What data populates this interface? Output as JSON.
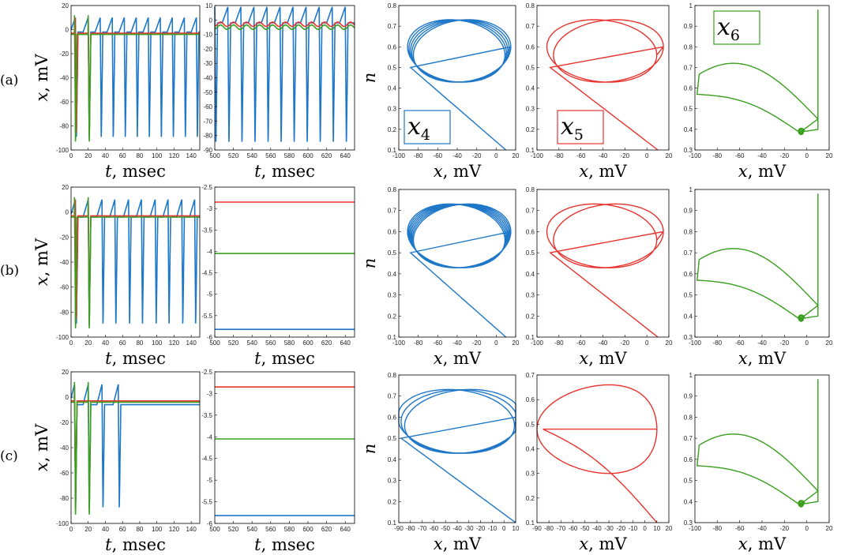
{
  "colors": {
    "x4": "#1f77c8",
    "x5": "#e8332e",
    "x6": "#3a9e1e"
  },
  "row_labels": [
    "(a)",
    "(b)",
    "(c)"
  ],
  "axis_text": {
    "x_time_var": "t",
    "x_time_unit": ", msec",
    "y_volt_var": "x",
    "y_volt_unit": ", mV",
    "x_volt_var": "x",
    "x_volt_unit": ", mV",
    "y_n_var": "n"
  },
  "trace_labels": {
    "x4": {
      "base": "x",
      "sub": "4"
    },
    "x5": {
      "base": "x",
      "sub": "5"
    },
    "x6": {
      "base": "x",
      "sub": "6"
    }
  },
  "chart_data": [
    {
      "id": "a-time-early",
      "type": "line",
      "xlabel": "t, msec",
      "ylabel": "x, mV",
      "xlim": [
        0,
        150
      ],
      "ylim": [
        -100,
        20
      ],
      "xticks": [
        0,
        20,
        40,
        60,
        80,
        100,
        120,
        140
      ],
      "yticks": [
        20,
        0,
        -20,
        -40,
        -60,
        -80,
        -100
      ],
      "series": [
        {
          "color": "x4",
          "kind": "spike_train",
          "spikes": [
            5,
            20,
            34,
            48,
            62,
            76,
            90,
            104,
            118,
            132,
            146
          ],
          "rest": -2,
          "peak": 10,
          "trough": -92
        },
        {
          "color": "x5",
          "kind": "damped",
          "spikes": [
            5,
            20
          ],
          "level": -3,
          "peak": 10,
          "trough": -88
        },
        {
          "color": "x6",
          "kind": "damped",
          "spikes": [
            4,
            20
          ],
          "level": -4,
          "peak": 12,
          "trough": -96
        }
      ]
    },
    {
      "id": "a-time-late",
      "type": "line",
      "xlabel": "t, msec",
      "ylabel": "",
      "xlim": [
        500,
        650
      ],
      "ylim": [
        -90,
        10
      ],
      "xticks": [
        500,
        520,
        540,
        560,
        580,
        600,
        620,
        640
      ],
      "yticks": [
        10,
        0,
        -10,
        -20,
        -30,
        -40,
        -50,
        -60,
        -70,
        -80,
        -90
      ],
      "series": [
        {
          "color": "x4",
          "kind": "spike_train",
          "spikes": [
            500,
            514,
            528,
            542,
            556,
            570,
            584,
            598,
            612,
            626,
            640
          ],
          "rest": -2,
          "peak": 9,
          "trough": -87
        },
        {
          "color": "x5",
          "kind": "flat_osc",
          "level": -3
        },
        {
          "color": "x6",
          "kind": "flat_osc",
          "level": -5
        }
      ]
    },
    {
      "id": "a-phase-x4",
      "type": "line",
      "xlabel": "x, mV",
      "ylabel": "n",
      "xlim": [
        -100,
        20
      ],
      "ylim": [
        0.1,
        0.8
      ],
      "xticks": [
        -100,
        -80,
        -60,
        -40,
        -20,
        0,
        20
      ],
      "yticks": [
        0.8,
        0.7,
        0.6,
        0.5,
        0.4,
        0.3,
        0.2,
        0.1
      ],
      "series": [
        {
          "color": "x4",
          "kind": "orbit",
          "variant": "a4"
        }
      ]
    },
    {
      "id": "a-phase-x5",
      "type": "line",
      "xlabel": "x, mV",
      "ylabel": "",
      "xlim": [
        -100,
        20
      ],
      "ylim": [
        0.1,
        0.8
      ],
      "xticks": [
        -100,
        -80,
        -60,
        -40,
        -20,
        0,
        20
      ],
      "yticks": [
        0.8,
        0.7,
        0.6,
        0.5,
        0.4,
        0.3,
        0.2,
        0.1
      ],
      "series": [
        {
          "color": "x5",
          "kind": "orbit",
          "variant": "a5"
        }
      ]
    },
    {
      "id": "a-phase-x6",
      "type": "line",
      "xlabel": "x, mV",
      "ylabel": "",
      "xlim": [
        -100,
        20
      ],
      "ylim": [
        0.3,
        1.0
      ],
      "xticks": [
        -100,
        -80,
        -60,
        -40,
        -20,
        0,
        20
      ],
      "yticks": [
        1,
        0.9,
        0.8,
        0.7,
        0.6,
        0.5,
        0.4,
        0.3
      ],
      "series": [
        {
          "color": "x6",
          "kind": "orbit",
          "variant": "a6"
        }
      ]
    },
    {
      "id": "b-time-early",
      "type": "line",
      "xlabel": "t, msec",
      "ylabel": "x, mV",
      "xlim": [
        0,
        150
      ],
      "ylim": [
        -100,
        20
      ],
      "xticks": [
        0,
        20,
        40,
        60,
        80,
        100,
        120,
        140
      ],
      "yticks": [
        20,
        0,
        -20,
        -40,
        -60,
        -80,
        -100
      ],
      "series": [
        {
          "color": "x4",
          "kind": "spike_train",
          "spikes": [
            5,
            20,
            36,
            51,
            67,
            82,
            98,
            113,
            129,
            144
          ],
          "rest": -4,
          "peak": 10,
          "trough": -92
        },
        {
          "color": "x5",
          "kind": "damped",
          "spikes": [
            5,
            20
          ],
          "level": -3,
          "peak": 10,
          "trough": -88
        },
        {
          "color": "x6",
          "kind": "damped",
          "spikes": [
            4,
            20
          ],
          "level": -4,
          "peak": 12,
          "trough": -96
        }
      ]
    },
    {
      "id": "b-time-late",
      "type": "line",
      "xlabel": "t, msec",
      "ylabel": "",
      "xlim": [
        500,
        650
      ],
      "ylim": [
        -6,
        -2.5
      ],
      "xticks": [
        500,
        520,
        540,
        560,
        580,
        600,
        620,
        640
      ],
      "yticks": [
        -2.5,
        -3,
        -3.5,
        -4,
        -4.5,
        -5,
        -5.5,
        -6
      ],
      "series": [
        {
          "color": "x5",
          "kind": "const",
          "level": -2.85
        },
        {
          "color": "x6",
          "kind": "const",
          "level": -4.05
        },
        {
          "color": "x4",
          "kind": "const",
          "level": -5.82
        }
      ]
    },
    {
      "id": "b-phase-x4",
      "type": "line",
      "xlabel": "x, mV",
      "ylabel": "n",
      "xlim": [
        -100,
        20
      ],
      "ylim": [
        0.1,
        0.8
      ],
      "xticks": [
        -100,
        -80,
        -60,
        -40,
        -20,
        0,
        20
      ],
      "yticks": [
        0.8,
        0.7,
        0.6,
        0.5,
        0.4,
        0.3,
        0.2,
        0.1
      ],
      "series": [
        {
          "color": "x4",
          "kind": "orbit",
          "variant": "b4"
        }
      ]
    },
    {
      "id": "b-phase-x5",
      "type": "line",
      "xlabel": "x, mV",
      "ylabel": "",
      "xlim": [
        -100,
        20
      ],
      "ylim": [
        0.1,
        0.8
      ],
      "xticks": [
        -100,
        -80,
        -60,
        -40,
        -20,
        0,
        20
      ],
      "yticks": [
        0.8,
        0.7,
        0.6,
        0.5,
        0.4,
        0.3,
        0.2,
        0.1
      ],
      "series": [
        {
          "color": "x5",
          "kind": "orbit",
          "variant": "a5"
        }
      ]
    },
    {
      "id": "b-phase-x6",
      "type": "line",
      "xlabel": "x, mV",
      "ylabel": "",
      "xlim": [
        -100,
        20
      ],
      "ylim": [
        0.3,
        1.0
      ],
      "xticks": [
        -100,
        -80,
        -60,
        -40,
        -20,
        0,
        20
      ],
      "yticks": [
        1,
        0.9,
        0.8,
        0.7,
        0.6,
        0.5,
        0.4,
        0.3
      ],
      "series": [
        {
          "color": "x6",
          "kind": "orbit",
          "variant": "a6"
        }
      ]
    },
    {
      "id": "c-time-early",
      "type": "line",
      "xlabel": "t, msec",
      "ylabel": "x, mV",
      "xlim": [
        0,
        150
      ],
      "ylim": [
        -100,
        20
      ],
      "xticks": [
        0,
        20,
        40,
        60,
        80,
        100,
        120,
        140
      ],
      "yticks": [
        20,
        0,
        -20,
        -40,
        -60,
        -80,
        -100
      ],
      "series": [
        {
          "color": "x4",
          "kind": "spike_train",
          "spikes": [
            4,
            20,
            36,
            55
          ],
          "rest": -6,
          "peak": 10,
          "trough": -90,
          "settle": -6
        },
        {
          "color": "x5",
          "kind": "damped",
          "spikes": [
            4
          ],
          "level": -3,
          "peak": 10,
          "trough": -85
        },
        {
          "color": "x6",
          "kind": "damped",
          "spikes": [
            4,
            20
          ],
          "level": -4,
          "peak": 12,
          "trough": -96
        }
      ]
    },
    {
      "id": "c-time-late",
      "type": "line",
      "xlabel": "t, msec",
      "ylabel": "",
      "xlim": [
        500,
        650
      ],
      "ylim": [
        -6,
        -2.5
      ],
      "xticks": [
        500,
        520,
        540,
        560,
        580,
        600,
        620,
        640
      ],
      "yticks": [
        -2.5,
        -3,
        -3.5,
        -4,
        -4.5,
        -5,
        -5.5,
        -6
      ],
      "series": [
        {
          "color": "x5",
          "kind": "const",
          "level": -2.85
        },
        {
          "color": "x6",
          "kind": "const",
          "level": -4.05
        },
        {
          "color": "x4",
          "kind": "const",
          "level": -5.82
        }
      ]
    },
    {
      "id": "c-phase-x4",
      "type": "line",
      "xlabel": "x, mV",
      "ylabel": "n",
      "xlim": [
        -90,
        10
      ],
      "ylim": [
        0.1,
        0.8
      ],
      "xticks": [
        -90,
        -80,
        -70,
        -60,
        -50,
        -40,
        -30,
        -20,
        -10,
        0,
        10
      ],
      "yticks": [
        0.8,
        0.7,
        0.6,
        0.5,
        0.4,
        0.3,
        0.2,
        0.1
      ],
      "series": [
        {
          "color": "x4",
          "kind": "orbit",
          "variant": "c4"
        }
      ]
    },
    {
      "id": "c-phase-x5",
      "type": "line",
      "xlabel": "x, mV",
      "ylabel": "",
      "xlim": [
        -90,
        20
      ],
      "ylim": [
        0.1,
        0.7
      ],
      "xticks": [
        -90,
        -80,
        -70,
        -60,
        -50,
        -40,
        -30,
        -20,
        -10,
        0,
        10,
        20
      ],
      "ytick_labels_shown": [
        0.7,
        0.6,
        0.5,
        0.4,
        0.3,
        0.2,
        0.1
      ],
      "yticks": [
        0.7,
        0.6,
        0.5,
        0.4,
        0.3,
        0.2,
        0.1
      ],
      "series": [
        {
          "color": "x5",
          "kind": "orbit",
          "variant": "c5"
        }
      ]
    },
    {
      "id": "c-phase-x6",
      "type": "line",
      "xlabel": "x, mV",
      "ylabel": "",
      "xlim": [
        -100,
        20
      ],
      "ylim": [
        0.3,
        1.0
      ],
      "xticks": [
        -100,
        -80,
        -60,
        -40,
        -20,
        0,
        20
      ],
      "yticks": [
        1,
        0.9,
        0.8,
        0.7,
        0.6,
        0.5,
        0.4,
        0.3
      ],
      "series": [
        {
          "color": "x6",
          "kind": "orbit",
          "variant": "a6"
        }
      ]
    }
  ]
}
